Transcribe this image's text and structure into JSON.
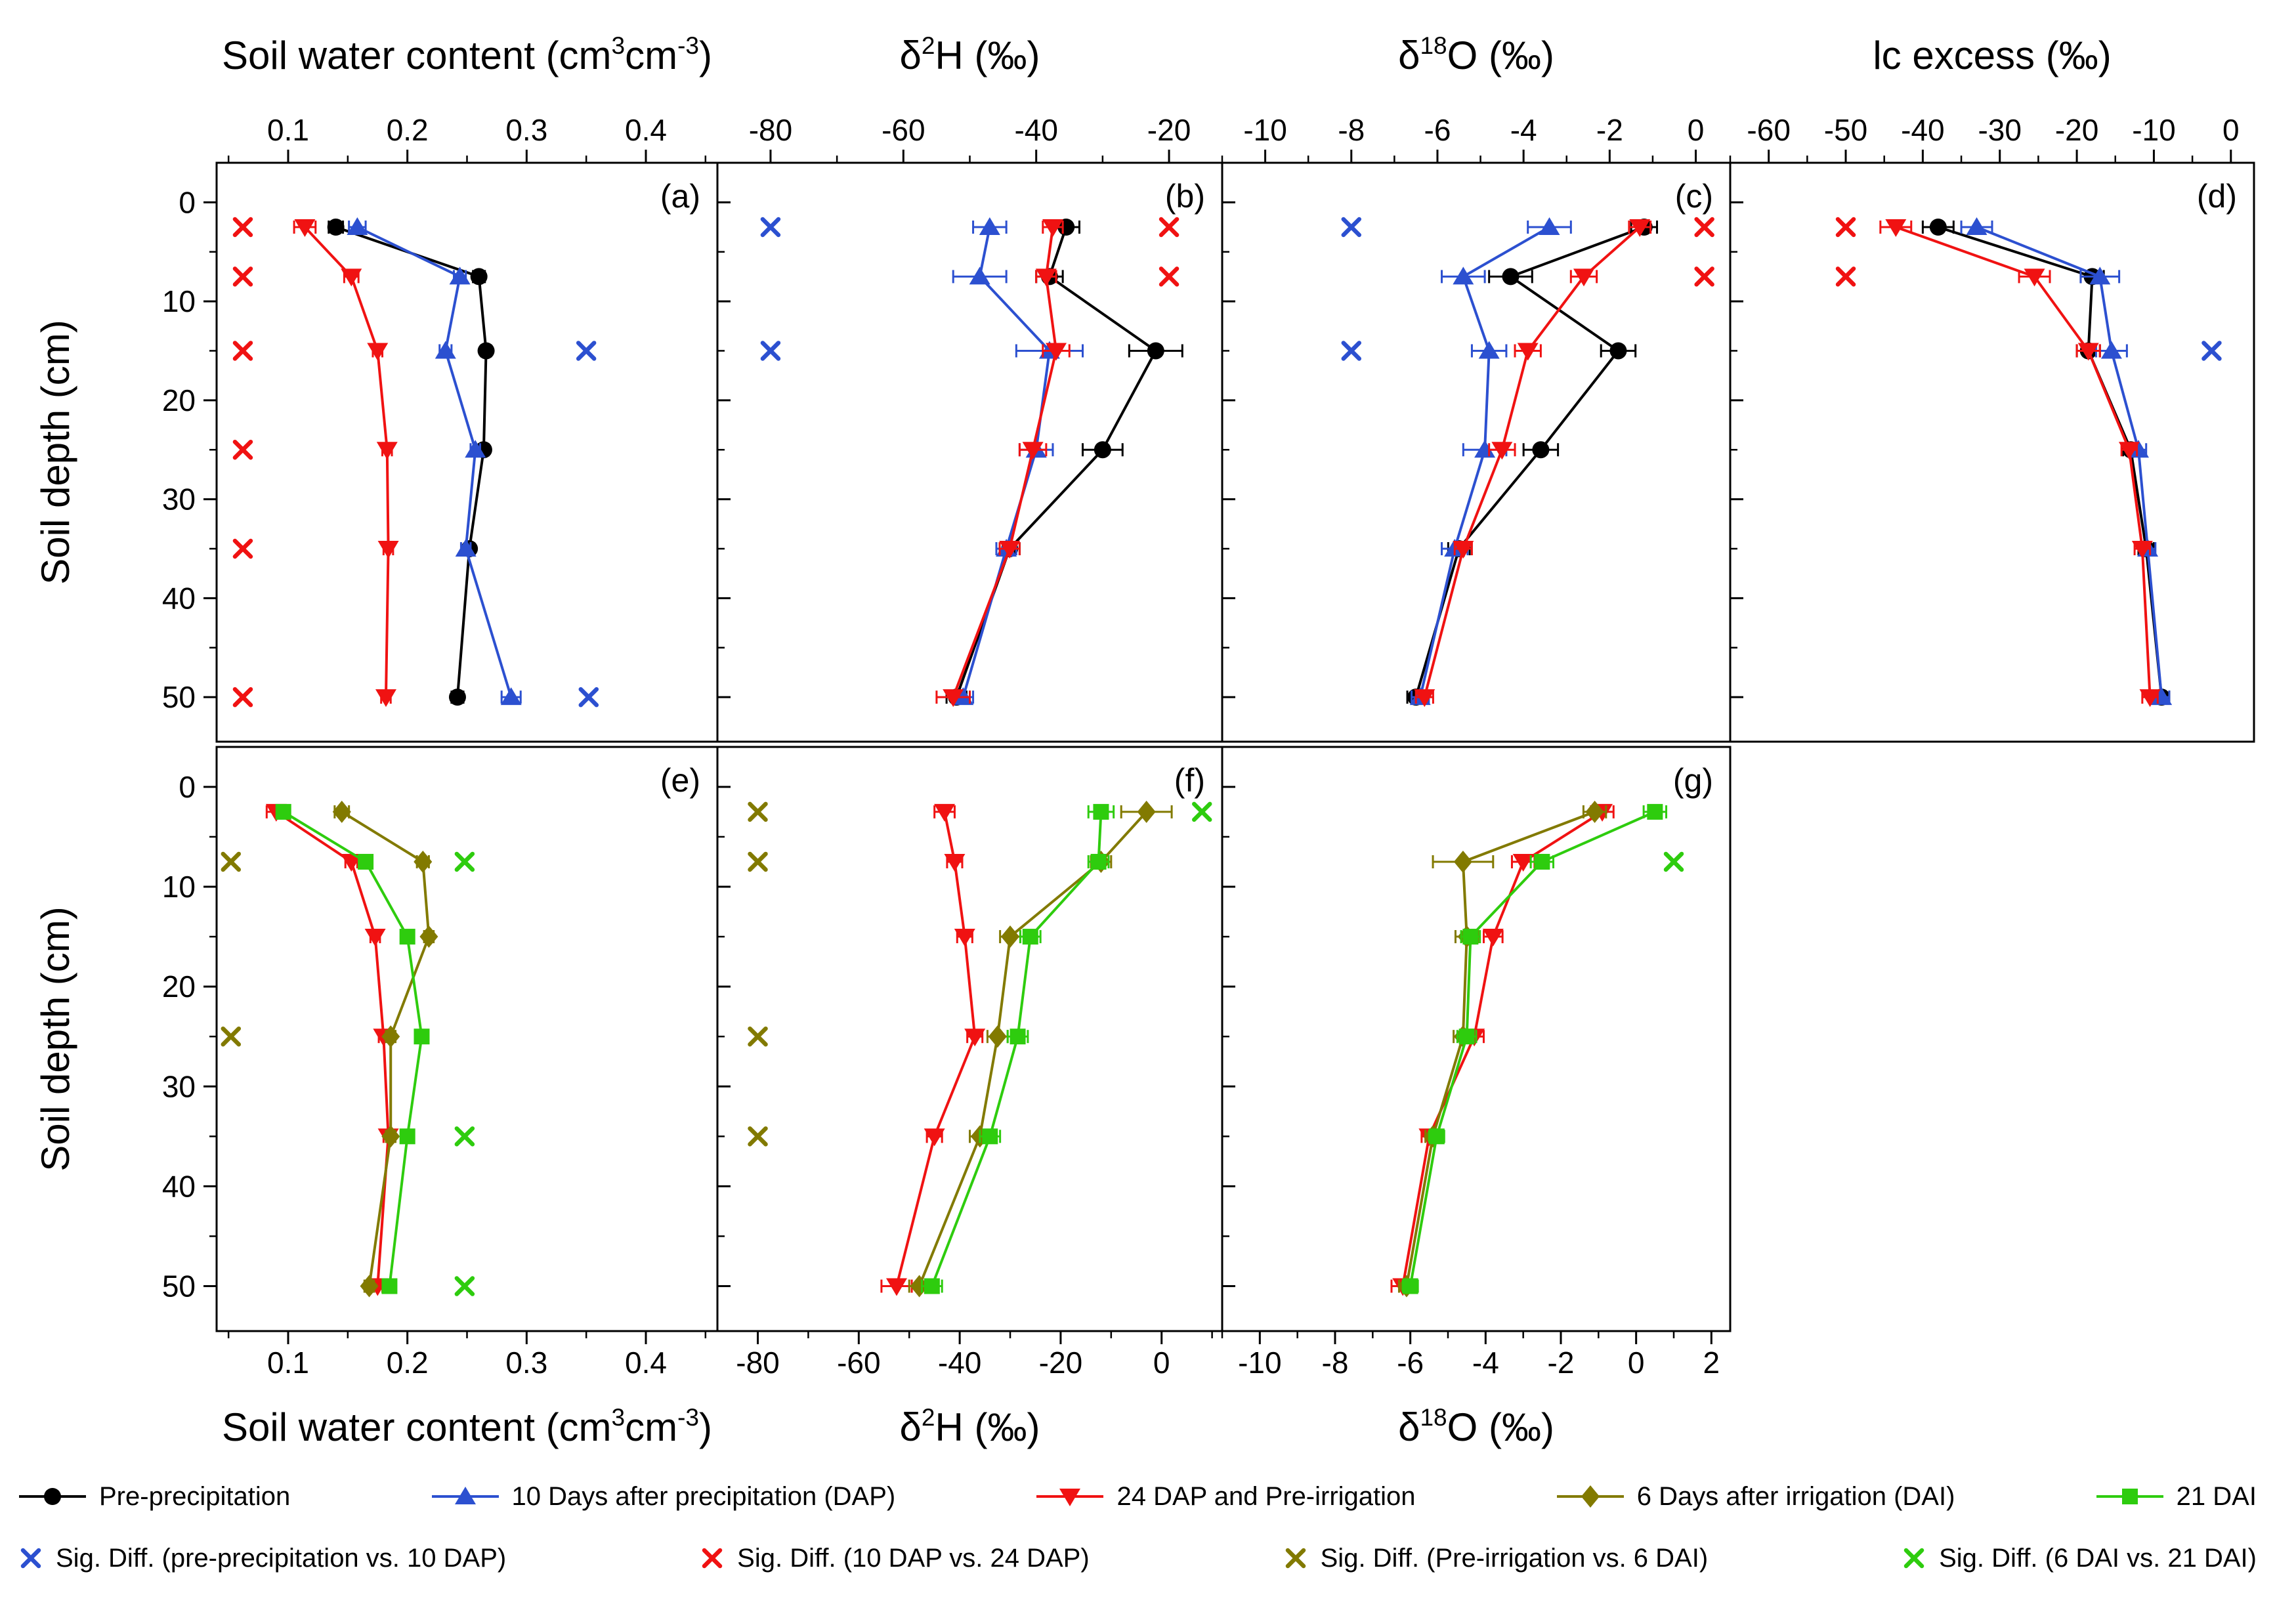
{
  "figure": {
    "ylabel": "Soil depth (cm)",
    "yticks": [
      0,
      10,
      20,
      30,
      40,
      50
    ],
    "ytick_labels": [
      "0",
      "10",
      "20",
      "30",
      "40",
      "50"
    ],
    "ylim": [
      -4,
      54.5
    ],
    "depths": [
      2.5,
      7.5,
      15,
      25,
      35,
      50
    ]
  },
  "series_styles": {
    "pre": {
      "label": "Pre-precipitation",
      "color": "#000000",
      "marker": "circle"
    },
    "dap10": {
      "label": "10 Days after precipitation (DAP)",
      "color": "#2c50d0",
      "marker": "triangle-up"
    },
    "dap24": {
      "label": "24 DAP and Pre-irrigation",
      "color": "#f01212",
      "marker": "triangle-down"
    },
    "dai6": {
      "label": "6 Days after irrigation (DAI)",
      "color": "#827a00",
      "marker": "diamond"
    },
    "dai21": {
      "label": "21 DAI",
      "color": "#2ecc0e",
      "marker": "square"
    }
  },
  "sig_styles": {
    "sigPreV10": {
      "label": "Sig. Diff. (pre-precipitation vs. 10 DAP)",
      "color": "#2c50d0"
    },
    "sig10v24": {
      "label": "Sig. Diff. (10 DAP vs. 24 DAP)",
      "color": "#f01212"
    },
    "sigPreIrrV6": {
      "label": "Sig. Diff. (Pre-irrigation vs. 6 DAI)",
      "color": "#827a00"
    },
    "sig6v21": {
      "label": "Sig. Diff. (6 DAI vs. 21 DAI)",
      "color": "#2ecc0e"
    }
  },
  "legend_row1": [
    "pre",
    "dap10",
    "dap24",
    "dai6",
    "dai21"
  ],
  "legend_row2": [
    "sigPreV10",
    "sig10v24",
    "sigPreIrrV6",
    "sig6v21"
  ],
  "chart_data": {
    "type": "line",
    "orientation": "depth-profile",
    "panels": [
      {
        "id": "a",
        "tag": "(a)",
        "row": 0,
        "col": 0,
        "axis_side": "top",
        "title": "Soil water content (cm³cm⁻³)",
        "title_parts": [
          {
            "t": "Soil water content (cm"
          },
          {
            "t": "3",
            "sup": true
          },
          {
            "t": "cm"
          },
          {
            "t": "-3",
            "sup": true
          },
          {
            "t": ")"
          }
        ],
        "xlim": [
          0.04,
          0.46
        ],
        "xticks": [
          0.1,
          0.2,
          0.3,
          0.4
        ],
        "xtick_labels": [
          "0.1",
          "0.2",
          "0.3",
          "0.4"
        ],
        "minor_step": 0.05,
        "series": [
          {
            "key": "pre",
            "x": [
              0.14,
              0.26,
              0.266,
              0.264,
              0.252,
              0.242
            ],
            "xerr": [
              0.006,
              0.005,
              0.004,
              0.004,
              0.004,
              0.005
            ]
          },
          {
            "key": "dap10",
            "x": [
              0.158,
              0.244,
              0.232,
              0.257,
              0.249,
              0.287
            ],
            "xerr": [
              0.007,
              0.005,
              0.005,
              0.004,
              0.004,
              0.008
            ]
          },
          {
            "key": "dap24",
            "x": [
              0.114,
              0.153,
              0.175,
              0.183,
              0.184,
              0.182
            ],
            "xerr": [
              0.009,
              0.006,
              0.004,
              0.004,
              0.004,
              0.004
            ]
          }
        ],
        "sig": [
          {
            "key": "sig10v24",
            "points": [
              [
                0.062,
                2.5
              ],
              [
                0.062,
                7.5
              ],
              [
                0.062,
                15
              ],
              [
                0.062,
                25
              ],
              [
                0.062,
                35
              ],
              [
                0.062,
                50
              ]
            ]
          },
          {
            "key": "sigPreV10",
            "points": [
              [
                0.35,
                15
              ],
              [
                0.352,
                50
              ]
            ]
          }
        ]
      },
      {
        "id": "b",
        "tag": "(b)",
        "row": 0,
        "col": 1,
        "axis_side": "top",
        "title": "δ²H (‰)",
        "title_parts": [
          {
            "t": "δ"
          },
          {
            "t": "2",
            "sup": true
          },
          {
            "t": "H (‰)"
          }
        ],
        "xlim": [
          -88,
          -12
        ],
        "xticks": [
          -80,
          -60,
          -40,
          -20
        ],
        "xtick_labels": [
          "-80",
          "-60",
          "-40",
          "-20"
        ],
        "minor_step": 10,
        "series": [
          {
            "key": "pre",
            "x": [
              -35.5,
              -38,
              -22,
              -30,
              -44,
              -52
            ],
            "xerr": [
              2,
              2,
              4,
              3,
              1.5,
              1.5
            ]
          },
          {
            "key": "dap10",
            "x": [
              -47,
              -48.5,
              -38,
              -40,
              -44.5,
              -51
            ],
            "xerr": [
              2.5,
              4,
              5,
              2.5,
              1.5,
              1.5
            ]
          },
          {
            "key": "dap24",
            "x": [
              -37.5,
              -38.5,
              -37,
              -40.5,
              -44,
              -52.5
            ],
            "xerr": [
              1.5,
              1.5,
              2,
              2,
              1.5,
              2.5
            ]
          }
        ],
        "sig": [
          {
            "key": "sigPreV10",
            "points": [
              [
                -80,
                2.5
              ],
              [
                -80,
                15
              ]
            ]
          },
          {
            "key": "sig10v24",
            "points": [
              [
                -20,
                2.5
              ],
              [
                -20,
                7.5
              ]
            ]
          }
        ]
      },
      {
        "id": "c",
        "tag": "(c)",
        "row": 0,
        "col": 2,
        "axis_side": "top",
        "title": "δ¹⁸O (‰)",
        "title_parts": [
          {
            "t": "δ"
          },
          {
            "t": "18",
            "sup": true
          },
          {
            "t": "O (‰)"
          }
        ],
        "xlim": [
          -11,
          0.8
        ],
        "xticks": [
          -10,
          -8,
          -6,
          -4,
          -2,
          0
        ],
        "xtick_labels": [
          "-10",
          "-8",
          "-6",
          "-4",
          "-2",
          "0"
        ],
        "minor_step": 1,
        "series": [
          {
            "key": "pre",
            "x": [
              -1.2,
              -4.3,
              -1.8,
              -3.6,
              -5.5,
              -6.5
            ],
            "xerr": [
              0.3,
              0.5,
              0.4,
              0.4,
              0.25,
              0.2
            ]
          },
          {
            "key": "dap10",
            "x": [
              -3.4,
              -5.4,
              -4.8,
              -4.9,
              -5.6,
              -6.4
            ],
            "xerr": [
              0.5,
              0.5,
              0.4,
              0.5,
              0.3,
              0.2
            ]
          },
          {
            "key": "dap24",
            "x": [
              -1.3,
              -2.6,
              -3.9,
              -4.5,
              -5.4,
              -6.3
            ],
            "xerr": [
              0.25,
              0.3,
              0.3,
              0.3,
              0.2,
              0.2
            ]
          }
        ],
        "sig": [
          {
            "key": "sigPreV10",
            "points": [
              [
                -8,
                2.5
              ],
              [
                -8,
                15
              ]
            ]
          },
          {
            "key": "sig10v24",
            "points": [
              [
                0.2,
                2.5
              ],
              [
                0.2,
                7.5
              ]
            ]
          }
        ]
      },
      {
        "id": "d",
        "tag": "(d)",
        "row": 0,
        "col": 3,
        "axis_side": "top",
        "title": "lc excess (‰)",
        "title_parts": [
          {
            "t": "lc excess (‰)"
          }
        ],
        "xlim": [
          -65,
          3
        ],
        "xticks": [
          -60,
          -50,
          -40,
          -30,
          -20,
          -10,
          0
        ],
        "xtick_labels": [
          "-60",
          "-50",
          "-40",
          "-30",
          "-20",
          "-10",
          "0"
        ],
        "minor_step": 5,
        "series": [
          {
            "key": "pre",
            "x": [
              -38,
              -18,
              -18.5,
              -13,
              -11,
              -9
            ],
            "xerr": [
              2,
              1.5,
              1.5,
              1,
              1,
              1
            ]
          },
          {
            "key": "dap10",
            "x": [
              -33,
              -17,
              -15.5,
              -12,
              -10.8,
              -9
            ],
            "xerr": [
              2,
              2.5,
              2,
              1,
              1,
              1
            ]
          },
          {
            "key": "dap24",
            "x": [
              -43.5,
              -25.5,
              -18.5,
              -13.2,
              -11.5,
              -10.5
            ],
            "xerr": [
              2,
              2,
              1.5,
              1,
              1,
              1
            ]
          }
        ],
        "sig": [
          {
            "key": "sig10v24",
            "points": [
              [
                -50,
                2.5
              ],
              [
                -50,
                7.5
              ]
            ]
          },
          {
            "key": "sigPreV10",
            "points": [
              [
                -2.5,
                15
              ]
            ]
          }
        ]
      },
      {
        "id": "e",
        "tag": "(e)",
        "row": 1,
        "col": 0,
        "axis_side": "bottom",
        "title": "Soil water content (cm³cm⁻³)",
        "title_parts": [
          {
            "t": "Soil water content (cm"
          },
          {
            "t": "3",
            "sup": true
          },
          {
            "t": "cm"
          },
          {
            "t": "-3",
            "sup": true
          },
          {
            "t": ")"
          }
        ],
        "xlim": [
          0.04,
          0.46
        ],
        "xticks": [
          0.1,
          0.2,
          0.3,
          0.4
        ],
        "xtick_labels": [
          "0.1",
          "0.2",
          "0.3",
          "0.4"
        ],
        "minor_step": 0.05,
        "series": [
          {
            "key": "dap24",
            "x": [
              0.09,
              0.153,
              0.173,
              0.18,
              0.184,
              0.175
            ],
            "xerr": [
              0.008,
              0.005,
              0.004,
              0.004,
              0.004,
              0.004
            ]
          },
          {
            "key": "dai6",
            "x": [
              0.145,
              0.213,
              0.218,
              0.186,
              0.186,
              0.168
            ],
            "xerr": [
              0.006,
              0.005,
              0.004,
              0.004,
              0.004,
              0.004
            ]
          },
          {
            "key": "dai21",
            "x": [
              0.096,
              0.165,
              0.2,
              0.212,
              0.2,
              0.185
            ],
            "xerr": [
              0.005,
              0.004,
              0.004,
              0.004,
              0.004,
              0.004
            ]
          }
        ],
        "sig": [
          {
            "key": "sigPreIrrV6",
            "points": [
              [
                0.052,
                7.5
              ],
              [
                0.052,
                25
              ]
            ]
          },
          {
            "key": "sig6v21",
            "points": [
              [
                0.248,
                7.5
              ],
              [
                0.248,
                35
              ],
              [
                0.248,
                50
              ]
            ]
          }
        ]
      },
      {
        "id": "f",
        "tag": "(f)",
        "row": 1,
        "col": 1,
        "axis_side": "bottom",
        "title": "δ²H (‰)",
        "title_parts": [
          {
            "t": "δ"
          },
          {
            "t": "2",
            "sup": true
          },
          {
            "t": "H (‰)"
          }
        ],
        "xlim": [
          -88,
          12
        ],
        "xticks": [
          -80,
          -60,
          -40,
          -20,
          0
        ],
        "xtick_labels": [
          "-80",
          "-60",
          "-40",
          "-20",
          "0"
        ],
        "minor_step": 10,
        "series": [
          {
            "key": "dap24",
            "x": [
              -43,
              -41,
              -39,
              -37,
              -45,
              -52.5
            ],
            "xerr": [
              2,
              1.5,
              1.5,
              1.5,
              1.5,
              3
            ]
          },
          {
            "key": "dai6",
            "x": [
              -3,
              -12,
              -30,
              -32.5,
              -36,
              -48
            ],
            "xerr": [
              5,
              2,
              2,
              2,
              2,
              2
            ]
          },
          {
            "key": "dai21",
            "x": [
              -12,
              -12.5,
              -26,
              -28.5,
              -34,
              -45.5
            ],
            "xerr": [
              2.5,
              2,
              2,
              2,
              2,
              2
            ]
          }
        ],
        "sig": [
          {
            "key": "sigPreIrrV6",
            "points": [
              [
                -80,
                2.5
              ],
              [
                -80,
                7.5
              ],
              [
                -80,
                25
              ],
              [
                -80,
                35
              ]
            ]
          },
          {
            "key": "sig6v21",
            "points": [
              [
                8,
                2.5
              ]
            ]
          }
        ]
      },
      {
        "id": "g",
        "tag": "(g)",
        "row": 1,
        "col": 2,
        "axis_side": "bottom",
        "title": "δ¹⁸O (‰)",
        "title_parts": [
          {
            "t": "δ"
          },
          {
            "t": "18",
            "sup": true
          },
          {
            "t": "O (‰)"
          }
        ],
        "xlim": [
          -11,
          2.5
        ],
        "xticks": [
          -10,
          -8,
          -6,
          -4,
          -2,
          0,
          2
        ],
        "xtick_labels": [
          "-10",
          "-8",
          "-6",
          "-4",
          "-2",
          "0",
          "2"
        ],
        "minor_step": 1,
        "series": [
          {
            "key": "dap24",
            "x": [
              -0.9,
              -3.0,
              -3.8,
              -4.3,
              -5.5,
              -6.2
            ],
            "xerr": [
              0.3,
              0.3,
              0.25,
              0.25,
              0.2,
              0.3
            ]
          },
          {
            "key": "dai6",
            "x": [
              -1.1,
              -4.6,
              -4.5,
              -4.6,
              -5.4,
              -6.1
            ],
            "xerr": [
              0.3,
              0.8,
              0.3,
              0.25,
              0.2,
              0.2
            ]
          },
          {
            "key": "dai21",
            "x": [
              0.5,
              -2.5,
              -4.4,
              -4.5,
              -5.3,
              -6.0
            ],
            "xerr": [
              0.3,
              0.3,
              0.25,
              0.25,
              0.2,
              0.2
            ]
          }
        ],
        "sig": [
          {
            "key": "sig6v21",
            "points": [
              [
                1.0,
                7.5
              ]
            ]
          }
        ]
      }
    ]
  }
}
